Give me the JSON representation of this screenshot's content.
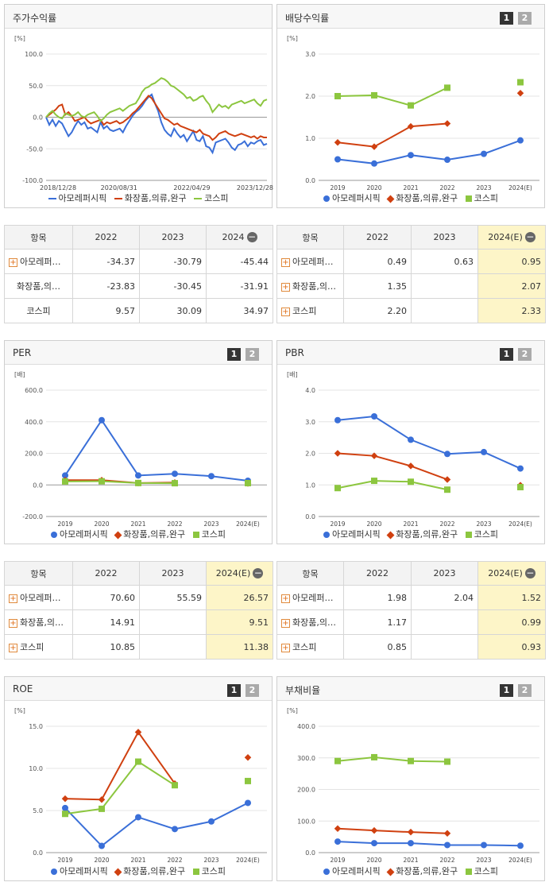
{
  "colors": {
    "company": "#3a6fd8",
    "industry": "#d04010",
    "kospi": "#8cc63f"
  },
  "panels": {
    "stock_return": {
      "title": "주가수익률",
      "unit": "[%]"
    },
    "dividend": {
      "title": "배당수익률",
      "unit": "[%]",
      "btn1": "1",
      "btn2": "2"
    },
    "per": {
      "title": "PER",
      "unit": "[배]",
      "btn1": "1",
      "btn2": "2"
    },
    "pbr": {
      "title": "PBR",
      "unit": "[배]",
      "btn1": "1",
      "btn2": "2"
    },
    "roe": {
      "title": "ROE",
      "unit": "[%]",
      "btn1": "1",
      "btn2": "2"
    },
    "debt": {
      "title": "부채비율",
      "unit": "[%]",
      "btn1": "1",
      "btn2": "2"
    }
  },
  "legend": {
    "company": "아모레퍼시픽",
    "industry": "화장품,의류,완구",
    "kospi": "코스피"
  },
  "tables": {
    "stock_return": {
      "headers": [
        "항목",
        "2022",
        "2023",
        "2024"
      ],
      "rows": [
        {
          "name": "아모레퍼…",
          "plus": true,
          "values": [
            "-34.37",
            "-30.79",
            "-45.44"
          ]
        },
        {
          "name": "화장품,의…",
          "plus": false,
          "values": [
            "-23.83",
            "-30.45",
            "-31.91"
          ]
        },
        {
          "name": "코스피",
          "plus": false,
          "values": [
            "9.57",
            "30.09",
            "34.97"
          ]
        }
      ]
    },
    "dividend": {
      "headers": [
        "항목",
        "2022",
        "2023",
        "2024(E)"
      ],
      "rows": [
        {
          "name": "아모레퍼…",
          "plus": true,
          "values": [
            "0.49",
            "0.63",
            "0.95"
          ]
        },
        {
          "name": "화장품,의…",
          "plus": true,
          "values": [
            "1.35",
            "",
            "2.07"
          ]
        },
        {
          "name": "코스피",
          "plus": true,
          "values": [
            "2.20",
            "",
            "2.33"
          ]
        }
      ]
    },
    "per": {
      "headers": [
        "항목",
        "2022",
        "2023",
        "2024(E)"
      ],
      "rows": [
        {
          "name": "아모레퍼…",
          "plus": true,
          "values": [
            "70.60",
            "55.59",
            "26.57"
          ]
        },
        {
          "name": "화장품,의…",
          "plus": true,
          "values": [
            "14.91",
            "",
            "9.51"
          ]
        },
        {
          "name": "코스피",
          "plus": true,
          "values": [
            "10.85",
            "",
            "11.38"
          ]
        }
      ]
    },
    "pbr": {
      "headers": [
        "항목",
        "2022",
        "2023",
        "2024(E)"
      ],
      "rows": [
        {
          "name": "아모레퍼…",
          "plus": true,
          "values": [
            "1.98",
            "2.04",
            "1.52"
          ]
        },
        {
          "name": "화장품,의…",
          "plus": true,
          "values": [
            "1.17",
            "",
            "0.99"
          ]
        },
        {
          "name": "코스피",
          "plus": true,
          "values": [
            "0.85",
            "",
            "0.93"
          ]
        }
      ]
    }
  },
  "chart_data": [
    {
      "id": "stock_return",
      "type": "line",
      "x_ticks": [
        "2018/12/28",
        "2020/08/31",
        "2022/04/29",
        "2023/12/28"
      ],
      "ylim": [
        -100,
        100
      ],
      "y_ticks": [
        100,
        50,
        0,
        -50,
        -100
      ],
      "series": [
        {
          "name": "아모레퍼시픽",
          "values": [
            0,
            -12,
            -4,
            -14,
            -6,
            -10,
            -20,
            -30,
            -24,
            -14,
            -6,
            -12,
            -8,
            -18,
            -16,
            -20,
            -24,
            -8,
            -18,
            -14,
            -20,
            -22,
            -20,
            -18,
            -24,
            -14,
            -6,
            2,
            8,
            12,
            18,
            26,
            32,
            36,
            22,
            10,
            -8,
            -20,
            -26,
            -30,
            -18,
            -26,
            -32,
            -28,
            -38,
            -30,
            -22,
            -36,
            -38,
            -30,
            -46,
            -48,
            -56,
            -40,
            -38,
            -36,
            -34,
            -40,
            -48,
            -52,
            -44,
            -42,
            -38,
            -46,
            -40,
            -42,
            -38,
            -36,
            -44,
            -42
          ]
        },
        {
          "name": "화장품,의류,완구",
          "values": [
            0,
            4,
            8,
            12,
            18,
            20,
            4,
            8,
            2,
            -6,
            -4,
            -2,
            0,
            -6,
            -10,
            -8,
            -6,
            -4,
            -12,
            -8,
            -10,
            -8,
            -6,
            -10,
            -8,
            -4,
            0,
            6,
            10,
            16,
            22,
            28,
            34,
            30,
            22,
            14,
            6,
            -2,
            -4,
            -8,
            -12,
            -10,
            -14,
            -16,
            -18,
            -20,
            -22,
            -24,
            -20,
            -26,
            -28,
            -30,
            -36,
            -32,
            -26,
            -24,
            -22,
            -26,
            -28,
            -30,
            -28,
            -26,
            -28,
            -30,
            -32,
            -30,
            -34,
            -30,
            -32,
            -32
          ]
        },
        {
          "name": "코스피",
          "values": [
            0,
            6,
            10,
            4,
            0,
            -2,
            6,
            4,
            2,
            4,
            8,
            2,
            0,
            4,
            6,
            8,
            2,
            -6,
            -2,
            4,
            8,
            10,
            12,
            14,
            10,
            14,
            18,
            20,
            22,
            30,
            40,
            46,
            48,
            52,
            54,
            58,
            62,
            60,
            56,
            50,
            48,
            44,
            40,
            36,
            30,
            32,
            26,
            28,
            32,
            34,
            26,
            20,
            8,
            14,
            20,
            16,
            18,
            14,
            20,
            22,
            24,
            26,
            22,
            24,
            26,
            28,
            22,
            18,
            26,
            28
          ]
        }
      ]
    },
    {
      "id": "dividend",
      "type": "line",
      "categories": [
        "2019",
        "2020",
        "2021",
        "2022",
        "2023",
        "2024(E)"
      ],
      "ylim": [
        0,
        3
      ],
      "y_ticks": [
        "3.0",
        "2.0",
        "1.0",
        "0.0"
      ],
      "series": [
        {
          "name": "아모레퍼시픽",
          "values": [
            0.5,
            0.4,
            0.6,
            0.49,
            0.63,
            0.95
          ]
        },
        {
          "name": "화장품,의류,완구",
          "values": [
            0.9,
            0.8,
            1.28,
            1.35,
            null,
            2.07
          ]
        },
        {
          "name": "코스피",
          "values": [
            2.0,
            2.02,
            1.78,
            2.2,
            null,
            2.33
          ]
        }
      ]
    },
    {
      "id": "per",
      "type": "line",
      "categories": [
        "2019",
        "2020",
        "2021",
        "2022",
        "2023",
        "2024(E)"
      ],
      "ylim": [
        -200,
        600
      ],
      "y_ticks": [
        "600.0",
        "400.0",
        "200.0",
        "0.0",
        "-200.0"
      ],
      "series": [
        {
          "name": "아모레퍼시픽",
          "values": [
            60,
            410,
            60,
            70.6,
            55.59,
            26.57
          ]
        },
        {
          "name": "화장품,의류,완구",
          "values": [
            30,
            30,
            12,
            14.91,
            null,
            9.51
          ]
        },
        {
          "name": "코스피",
          "values": [
            22,
            23,
            12,
            10.85,
            null,
            11.38
          ]
        }
      ]
    },
    {
      "id": "pbr",
      "type": "line",
      "categories": [
        "2019",
        "2020",
        "2021",
        "2022",
        "2023",
        "2024(E)"
      ],
      "ylim": [
        0,
        4
      ],
      "y_ticks": [
        "4.0",
        "3.0",
        "2.0",
        "1.0",
        "0.0"
      ],
      "series": [
        {
          "name": "아모레퍼시픽",
          "values": [
            3.05,
            3.17,
            2.43,
            1.98,
            2.04,
            1.52
          ]
        },
        {
          "name": "화장품,의류,완구",
          "values": [
            2.0,
            1.92,
            1.6,
            1.17,
            null,
            0.99
          ]
        },
        {
          "name": "코스피",
          "values": [
            0.9,
            1.13,
            1.1,
            0.85,
            null,
            0.93
          ]
        }
      ]
    },
    {
      "id": "roe",
      "type": "line",
      "categories": [
        "2019",
        "2020",
        "2021",
        "2022",
        "2023",
        "2024(E)"
      ],
      "ylim": [
        0,
        15
      ],
      "y_ticks": [
        "15.0",
        "10.0",
        "5.0",
        "0.0"
      ],
      "series": [
        {
          "name": "아모레퍼시픽",
          "values": [
            5.3,
            0.8,
            4.2,
            2.8,
            3.7,
            5.9
          ]
        },
        {
          "name": "화장품,의류,완구",
          "values": [
            6.4,
            6.3,
            14.3,
            8.2,
            null,
            11.3
          ]
        },
        {
          "name": "코스피",
          "values": [
            4.6,
            5.2,
            10.8,
            8.0,
            null,
            8.5
          ]
        }
      ]
    },
    {
      "id": "debt",
      "type": "line",
      "categories": [
        "2019",
        "2020",
        "2021",
        "2022",
        "2023",
        "2024(E)"
      ],
      "ylim": [
        0,
        400
      ],
      "y_ticks": [
        "400.0",
        "300.0",
        "200.0",
        "100.0",
        "0.0"
      ],
      "series": [
        {
          "name": "아모레퍼시픽",
          "values": [
            35,
            30,
            30,
            24,
            24,
            22
          ]
        },
        {
          "name": "화장품,의류,완구",
          "values": [
            76,
            70,
            65,
            61,
            null,
            null
          ]
        },
        {
          "name": "코스피",
          "values": [
            290,
            302,
            290,
            288,
            null,
            null
          ]
        }
      ]
    }
  ]
}
